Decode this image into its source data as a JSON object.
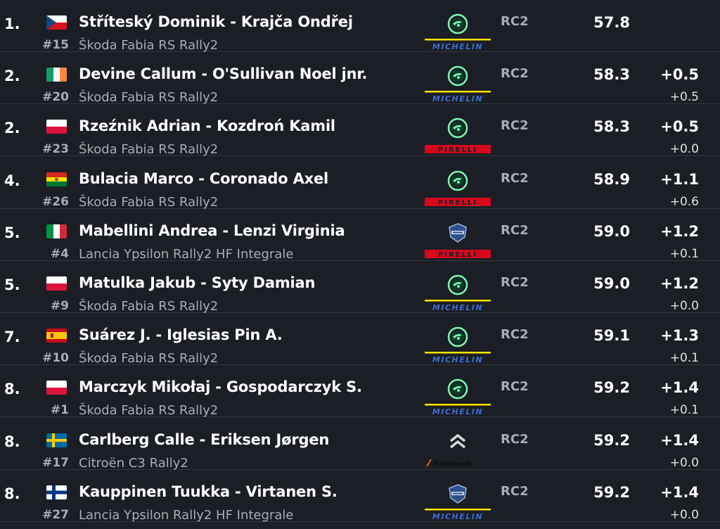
{
  "colors": {
    "background": "#1b1e24",
    "divider": "#34373d",
    "muted": "#a9adb4",
    "skoda_green": "#78faae",
    "michelin_blue": "#27509b",
    "michelin_yellow": "#fce500",
    "pirelli_red": "#d6081e",
    "hankook_orange": "#f26a21"
  },
  "rows": [
    {
      "pos": "1.",
      "flag": "cz",
      "number": "#15",
      "names": "Stříteský Dominik - Krajča Ondřej",
      "car": "Škoda Fabia RS Rally2",
      "brand": "skoda",
      "tyre": "michelin",
      "tyre_label": "MICHELIN",
      "class": "RC2",
      "time": "57.8",
      "gap_leader": "",
      "gap_prev": ""
    },
    {
      "pos": "2.",
      "flag": "ie",
      "number": "#20",
      "names": "Devine Callum - O'Sullivan Noel jnr.",
      "car": "Škoda Fabia RS Rally2",
      "brand": "skoda",
      "tyre": "michelin",
      "tyre_label": "MICHELIN",
      "class": "RC2",
      "time": "58.3",
      "gap_leader": "+0.5",
      "gap_prev": "+0.5"
    },
    {
      "pos": "2.",
      "flag": "pl",
      "number": "#23",
      "names": "Rzeźnik Adrian - Kozdroń Kamil",
      "car": "Škoda Fabia RS Rally2",
      "brand": "skoda",
      "tyre": "pirelli",
      "tyre_label": "PIRELLI",
      "class": "RC2",
      "time": "58.3",
      "gap_leader": "+0.5",
      "gap_prev": "+0.0"
    },
    {
      "pos": "4.",
      "flag": "bo",
      "number": "#26",
      "names": "Bulacia Marco - Coronado Axel",
      "car": "Škoda Fabia RS Rally2",
      "brand": "skoda",
      "tyre": "pirelli",
      "tyre_label": "PIRELLI",
      "class": "RC2",
      "time": "58.9",
      "gap_leader": "+1.1",
      "gap_prev": "+0.6"
    },
    {
      "pos": "5.",
      "flag": "it",
      "number": "#4",
      "names": "Mabellini Andrea - Lenzi Virginia",
      "car": "Lancia Ypsilon Rally2 HF Integrale",
      "brand": "lancia",
      "tyre": "pirelli",
      "tyre_label": "PIRELLI",
      "class": "RC2",
      "time": "59.0",
      "gap_leader": "+1.2",
      "gap_prev": "+0.1"
    },
    {
      "pos": "5.",
      "flag": "pl",
      "number": "#9",
      "names": "Matulka Jakub - Syty Damian",
      "car": "Škoda Fabia RS Rally2",
      "brand": "skoda",
      "tyre": "michelin",
      "tyre_label": "MICHELIN",
      "class": "RC2",
      "time": "59.0",
      "gap_leader": "+1.2",
      "gap_prev": "+0.0"
    },
    {
      "pos": "7.",
      "flag": "es",
      "number": "#10",
      "names": "Suárez J. - Iglesias Pin A.",
      "car": "Škoda Fabia RS Rally2",
      "brand": "skoda",
      "tyre": "michelin",
      "tyre_label": "MICHELIN",
      "class": "RC2",
      "time": "59.1",
      "gap_leader": "+1.3",
      "gap_prev": "+0.1"
    },
    {
      "pos": "8.",
      "flag": "pl",
      "number": "#1",
      "names": "Marczyk Mikołaj - Gospodarczyk S.",
      "car": "Škoda Fabia RS Rally2",
      "brand": "skoda",
      "tyre": "michelin",
      "tyre_label": "MICHELIN",
      "class": "RC2",
      "time": "59.2",
      "gap_leader": "+1.4",
      "gap_prev": "+0.1"
    },
    {
      "pos": "8.",
      "flag": "se",
      "number": "#17",
      "names": "Carlberg Calle - Eriksen Jørgen",
      "car": "Citroën C3 Rally2",
      "brand": "citroen",
      "tyre": "hankook",
      "tyre_label": "Hankook",
      "class": "RC2",
      "time": "59.2",
      "gap_leader": "+1.4",
      "gap_prev": "+0.0"
    },
    {
      "pos": "8.",
      "flag": "fi",
      "number": "#27",
      "names": "Kauppinen Tuukka - Virtanen S.",
      "car": "Lancia Ypsilon Rally2 HF Integrale",
      "brand": "lancia",
      "tyre": "michelin",
      "tyre_label": "MICHELIN",
      "class": "RC2",
      "time": "59.2",
      "gap_leader": "+1.4",
      "gap_prev": "+0.0"
    }
  ]
}
